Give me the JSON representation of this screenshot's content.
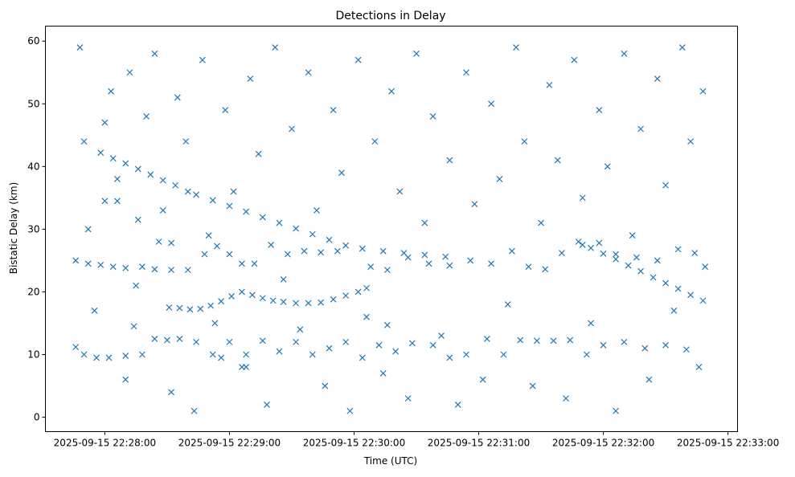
{
  "chart_data": {
    "type": "scatter",
    "title": "Detections in Delay",
    "xlabel": "Time (UTC)",
    "ylabel": "Bistatic Delay (km)",
    "x_units": "seconds after 2025-09-15 22:27:00 UTC",
    "xlim": [
      31.4,
      364.6
    ],
    "ylim": [
      -2.3,
      62.4
    ],
    "grid": false,
    "marker": "x",
    "color": "#1f77b4",
    "x_ticks": [
      {
        "value": 60,
        "label": "2025-09-15 22:28:00"
      },
      {
        "value": 120,
        "label": "2025-09-15 22:29:00"
      },
      {
        "value": 180,
        "label": "2025-09-15 22:30:00"
      },
      {
        "value": 240,
        "label": "2025-09-15 22:31:00"
      },
      {
        "value": 300,
        "label": "2025-09-15 22:32:00"
      },
      {
        "value": 360,
        "label": "2025-09-15 22:33:00"
      }
    ],
    "y_ticks": [
      {
        "value": 0,
        "label": "0"
      },
      {
        "value": 10,
        "label": "10"
      },
      {
        "value": 20,
        "label": "20"
      },
      {
        "value": 30,
        "label": "30"
      },
      {
        "value": 40,
        "label": "40"
      },
      {
        "value": 50,
        "label": "50"
      },
      {
        "value": 60,
        "label": "60"
      }
    ],
    "points": [
      [
        48,
        59
      ],
      [
        50,
        44
      ],
      [
        52,
        30
      ],
      [
        55,
        17
      ],
      [
        60,
        47
      ],
      [
        63,
        52
      ],
      [
        66,
        38
      ],
      [
        70,
        6
      ],
      [
        72,
        55
      ],
      [
        75,
        21
      ],
      [
        80,
        48
      ],
      [
        84,
        58
      ],
      [
        88,
        33
      ],
      [
        92,
        4
      ],
      [
        95,
        51
      ],
      [
        99,
        44
      ],
      [
        103,
        1
      ],
      [
        107,
        57
      ],
      [
        110,
        29
      ],
      [
        113,
        15
      ],
      [
        118,
        49
      ],
      [
        122,
        36
      ],
      [
        126,
        8
      ],
      [
        130,
        54
      ],
      [
        134,
        42
      ],
      [
        138,
        2
      ],
      [
        142,
        59
      ],
      [
        146,
        22
      ],
      [
        150,
        46
      ],
      [
        154,
        14
      ],
      [
        158,
        55
      ],
      [
        162,
        33
      ],
      [
        166,
        5
      ],
      [
        170,
        49
      ],
      [
        174,
        39
      ],
      [
        178,
        1
      ],
      [
        182,
        57
      ],
      [
        186,
        16
      ],
      [
        190,
        44
      ],
      [
        194,
        7
      ],
      [
        198,
        52
      ],
      [
        202,
        36
      ],
      [
        206,
        3
      ],
      [
        210,
        58
      ],
      [
        214,
        31
      ],
      [
        218,
        48
      ],
      [
        222,
        13
      ],
      [
        226,
        41
      ],
      [
        230,
        2
      ],
      [
        234,
        55
      ],
      [
        238,
        34
      ],
      [
        242,
        6
      ],
      [
        246,
        50
      ],
      [
        250,
        38
      ],
      [
        254,
        18
      ],
      [
        258,
        59
      ],
      [
        262,
        44
      ],
      [
        266,
        5
      ],
      [
        270,
        31
      ],
      [
        274,
        53
      ],
      [
        278,
        41
      ],
      [
        282,
        3
      ],
      [
        286,
        57
      ],
      [
        290,
        35
      ],
      [
        294,
        15
      ],
      [
        298,
        49
      ],
      [
        302,
        40
      ],
      [
        306,
        1
      ],
      [
        310,
        58
      ],
      [
        314,
        29
      ],
      [
        318,
        46
      ],
      [
        322,
        6
      ],
      [
        326,
        54
      ],
      [
        330,
        37
      ],
      [
        334,
        17
      ],
      [
        338,
        59
      ],
      [
        342,
        44
      ],
      [
        346,
        8
      ],
      [
        348,
        52
      ],
      [
        349,
        24
      ],
      [
        58,
        42.2
      ],
      [
        64,
        41.3
      ],
      [
        70,
        40.5
      ],
      [
        76,
        39.6
      ],
      [
        82,
        38.7
      ],
      [
        88,
        37.8
      ],
      [
        94,
        37
      ],
      [
        100,
        36
      ],
      [
        104,
        35.5
      ],
      [
        112,
        34.6
      ],
      [
        120,
        33.7
      ],
      [
        128,
        32.8
      ],
      [
        136,
        31.9
      ],
      [
        144,
        31
      ],
      [
        152,
        30.1
      ],
      [
        160,
        29.2
      ],
      [
        168,
        28.3
      ],
      [
        176,
        27.4
      ],
      [
        184,
        26.9
      ],
      [
        194,
        26.5
      ],
      [
        204,
        26.2
      ],
      [
        214,
        25.9
      ],
      [
        224,
        25.6
      ],
      [
        91,
        17.5
      ],
      [
        96,
        17.4
      ],
      [
        101,
        17.2
      ],
      [
        106,
        17.3
      ],
      [
        111,
        17.8
      ],
      [
        116,
        18.5
      ],
      [
        121,
        19.3
      ],
      [
        126,
        20
      ],
      [
        131,
        19.5
      ],
      [
        136,
        19
      ],
      [
        141,
        18.6
      ],
      [
        146,
        18.4
      ],
      [
        152,
        18.2
      ],
      [
        158,
        18.2
      ],
      [
        164,
        18.3
      ],
      [
        170,
        18.8
      ],
      [
        176,
        19.4
      ],
      [
        182,
        20
      ],
      [
        186,
        20.6
      ],
      [
        288,
        28
      ],
      [
        294,
        27
      ],
      [
        300,
        26.1
      ],
      [
        306,
        25.2
      ],
      [
        312,
        24.2
      ],
      [
        318,
        23.3
      ],
      [
        324,
        22.3
      ],
      [
        330,
        21.4
      ],
      [
        336,
        20.5
      ],
      [
        342,
        19.5
      ],
      [
        348,
        18.6
      ],
      [
        46,
        25
      ],
      [
        52,
        24.5
      ],
      [
        58,
        24.3
      ],
      [
        64,
        24
      ],
      [
        70,
        23.8
      ],
      [
        78,
        24
      ],
      [
        84,
        23.6
      ],
      [
        92,
        23.5
      ],
      [
        100,
        23.5
      ],
      [
        108,
        26
      ],
      [
        114,
        27.3
      ],
      [
        120,
        26
      ],
      [
        126,
        24.5
      ],
      [
        132,
        24.5
      ],
      [
        140,
        27.5
      ],
      [
        148,
        26
      ],
      [
        156,
        26.5
      ],
      [
        164,
        26.3
      ],
      [
        172,
        26.5
      ],
      [
        188,
        24
      ],
      [
        196,
        23.5
      ],
      [
        206,
        25.5
      ],
      [
        216,
        24.5
      ],
      [
        226,
        24.2
      ],
      [
        236,
        25
      ],
      [
        246,
        24.5
      ],
      [
        256,
        26.5
      ],
      [
        264,
        24
      ],
      [
        272,
        23.6
      ],
      [
        280,
        26.2
      ],
      [
        290,
        27.5
      ],
      [
        298,
        27.8
      ],
      [
        306,
        26
      ],
      [
        316,
        25.5
      ],
      [
        326,
        25
      ],
      [
        336,
        26.8
      ],
      [
        344,
        26.2
      ],
      [
        60,
        34.5
      ],
      [
        66,
        34.5
      ],
      [
        76,
        31.5
      ],
      [
        86,
        28
      ],
      [
        92,
        27.8
      ],
      [
        46,
        11.2
      ],
      [
        50,
        10
      ],
      [
        56,
        9.5
      ],
      [
        62,
        9.5
      ],
      [
        70,
        9.8
      ],
      [
        78,
        10
      ],
      [
        84,
        12.5
      ],
      [
        90,
        12.3
      ],
      [
        96,
        12.5
      ],
      [
        104,
        12
      ],
      [
        112,
        10
      ],
      [
        120,
        12
      ],
      [
        128,
        10
      ],
      [
        136,
        12.2
      ],
      [
        144,
        10.5
      ],
      [
        152,
        12
      ],
      [
        160,
        10
      ],
      [
        168,
        11
      ],
      [
        176,
        12
      ],
      [
        184,
        9.5
      ],
      [
        192,
        11.5
      ],
      [
        200,
        10.5
      ],
      [
        208,
        11.8
      ],
      [
        218,
        11.5
      ],
      [
        226,
        9.5
      ],
      [
        234,
        10
      ],
      [
        244,
        12.5
      ],
      [
        252,
        10
      ],
      [
        260,
        12.3
      ],
      [
        268,
        12.2
      ],
      [
        276,
        12.2
      ],
      [
        284,
        12.3
      ],
      [
        292,
        10
      ],
      [
        300,
        11.5
      ],
      [
        310,
        12
      ],
      [
        320,
        11
      ],
      [
        330,
        11.5
      ],
      [
        340,
        10.8
      ],
      [
        74,
        14.5
      ],
      [
        196,
        14.7
      ],
      [
        128,
        8
      ],
      [
        116,
        9.5
      ]
    ]
  }
}
